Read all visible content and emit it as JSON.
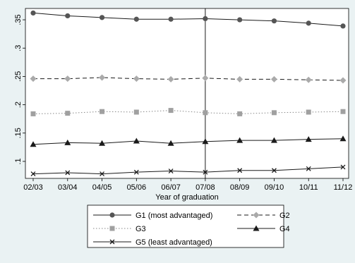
{
  "chart_data": {
    "type": "line",
    "title": "",
    "xlabel": "Year of graduation",
    "ylabel": "",
    "x": [
      "02/03",
      "03/04",
      "04/05",
      "05/06",
      "06/07",
      "07/08",
      "08/09",
      "09/10",
      "10/11",
      "11/12"
    ],
    "ylim": [
      0.07,
      0.37
    ],
    "yticks": [
      0.1,
      0.15,
      0.2,
      0.25,
      0.3,
      0.35
    ],
    "ytick_labels": [
      ".1",
      ".15",
      ".2",
      ".25",
      ".3",
      ".35"
    ],
    "vline_at": "07/08",
    "grid": false,
    "legend_position": "bottom",
    "series": [
      {
        "name": "G1 (most advantaged)",
        "marker": "circle",
        "line": "solid",
        "color": "#1a1a1a",
        "marker_color": "#555555",
        "values": [
          0.362,
          0.357,
          0.354,
          0.351,
          0.351,
          0.352,
          0.35,
          0.348,
          0.344,
          0.339
        ]
      },
      {
        "name": "G2",
        "marker": "diamond",
        "line": "dashed",
        "color": "#1a1a1a",
        "marker_color": "#aaaaaa",
        "values": [
          0.246,
          0.246,
          0.248,
          0.246,
          0.245,
          0.247,
          0.245,
          0.245,
          0.244,
          0.243
        ]
      },
      {
        "name": "G3",
        "marker": "square",
        "line": "dotted",
        "color": "#888888",
        "marker_color": "#a0a0a0",
        "values": [
          0.184,
          0.185,
          0.188,
          0.187,
          0.19,
          0.186,
          0.184,
          0.186,
          0.187,
          0.188
        ]
      },
      {
        "name": "G4",
        "marker": "triangle",
        "line": "solid",
        "color": "#1a1a1a",
        "marker_color": "#1a1a1a",
        "values": [
          0.13,
          0.133,
          0.132,
          0.136,
          0.132,
          0.135,
          0.137,
          0.137,
          0.139,
          0.14
        ]
      },
      {
        "name": "G5 (least advantaged)",
        "marker": "x",
        "line": "solid",
        "color": "#1a1a1a",
        "marker_color": "#1a1a1a",
        "values": [
          0.078,
          0.08,
          0.078,
          0.081,
          0.083,
          0.081,
          0.084,
          0.084,
          0.087,
          0.09
        ]
      }
    ]
  }
}
